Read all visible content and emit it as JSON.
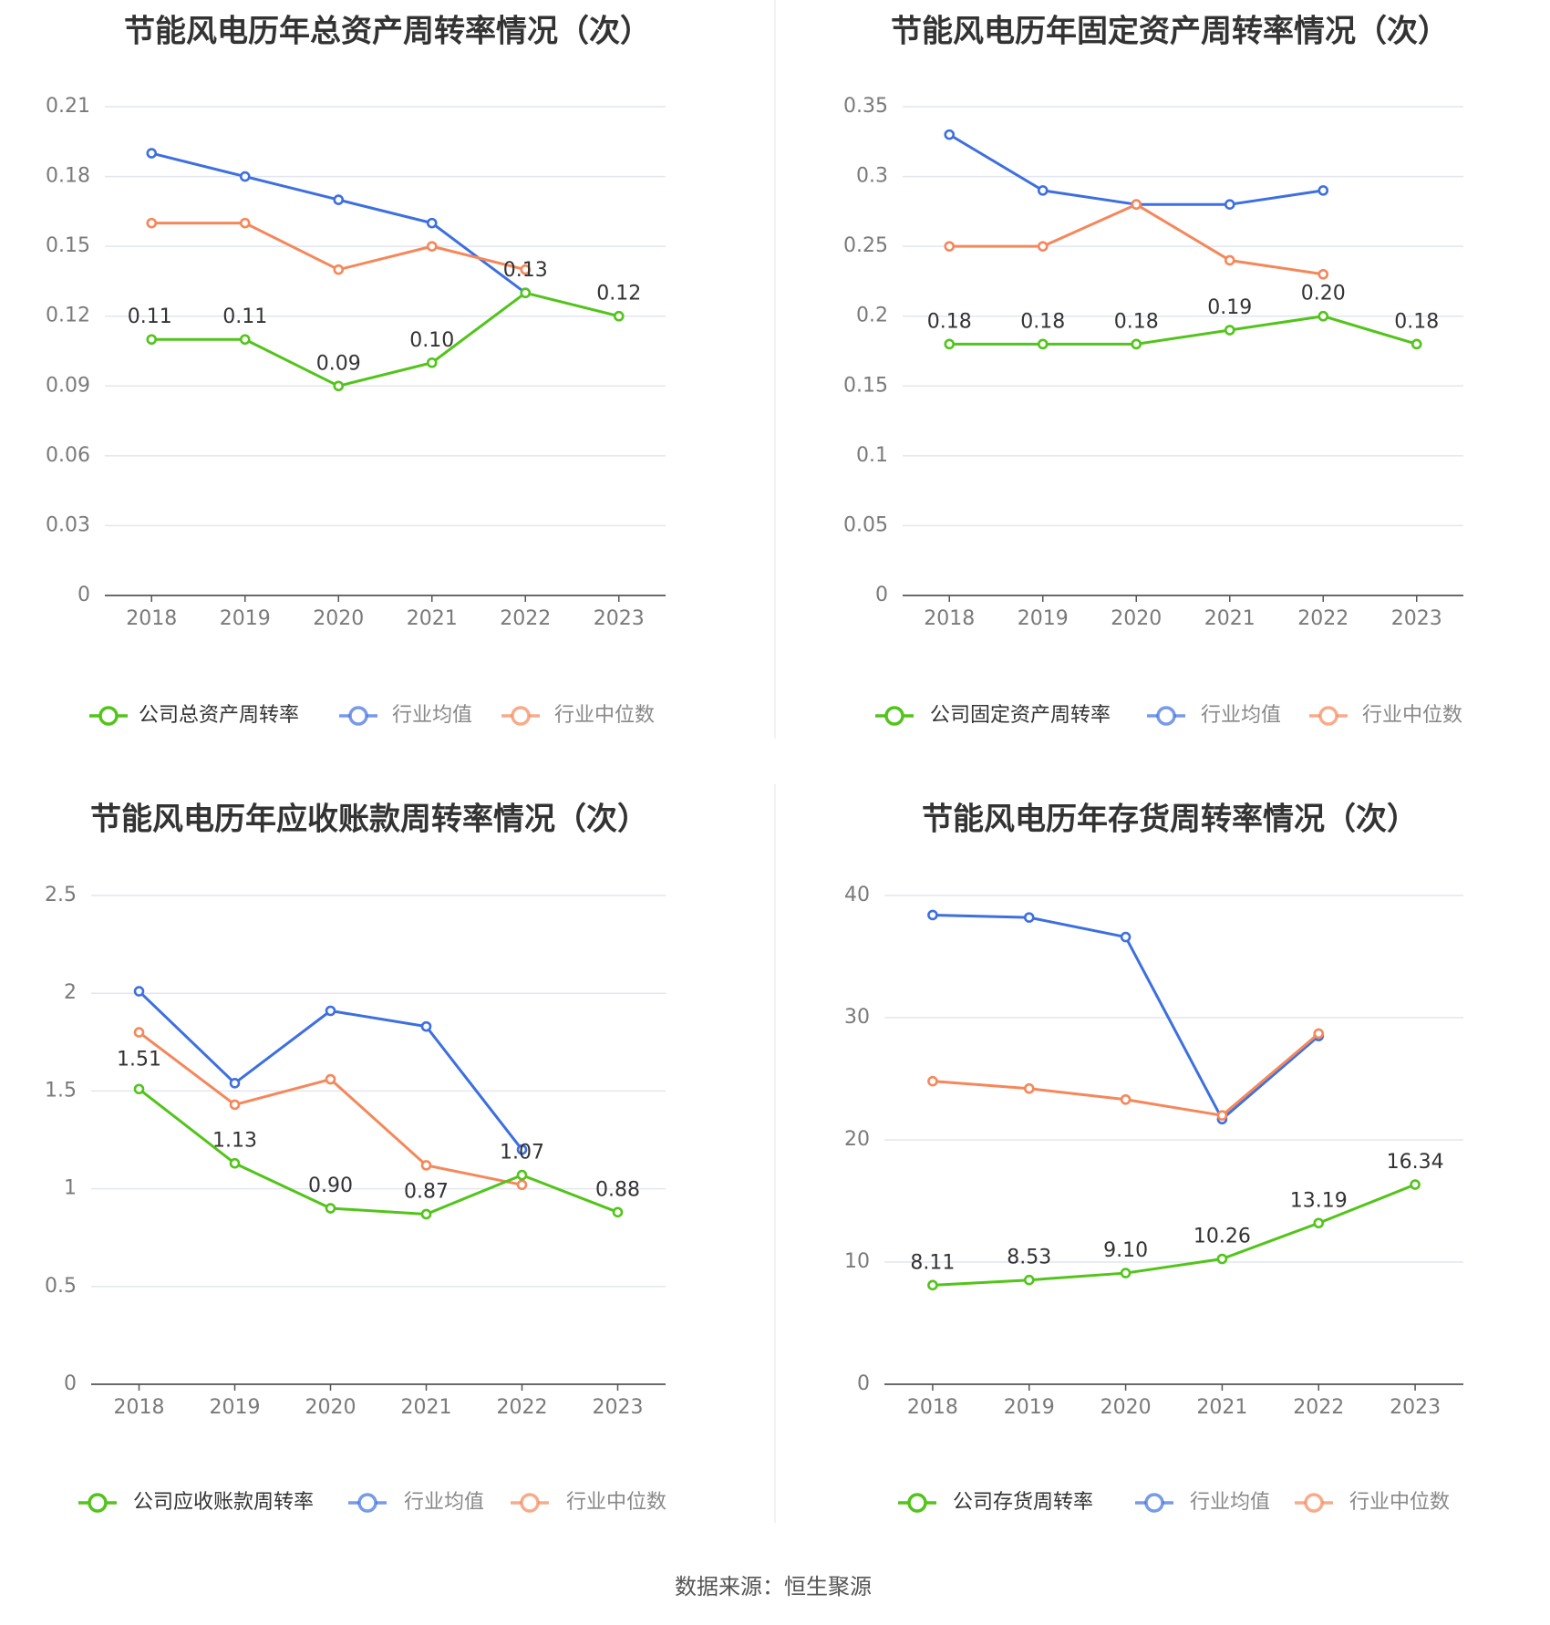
{
  "source_note": "数据来源：恒生聚源",
  "chart_data": [
    {
      "type": "line",
      "title": "节能风电历年总资产周转率情况（次）",
      "categories": [
        "2018",
        "2019",
        "2020",
        "2021",
        "2022",
        "2023"
      ],
      "ylim": [
        0,
        0.21
      ],
      "yticks": [
        "0",
        "0.03",
        "0.06",
        "0.09",
        "0.12",
        "0.15",
        "0.18",
        "0.21"
      ],
      "grid": true,
      "legend_position": "bottom",
      "series": [
        {
          "name": "公司总资产周转率",
          "color": "#52c41a",
          "values": [
            0.11,
            0.11,
            0.09,
            0.1,
            0.13,
            0.12
          ],
          "labels": [
            "0.11",
            "0.11",
            "0.09",
            "0.10",
            "0.13",
            "0.12"
          ]
        },
        {
          "name": "行业均值",
          "color": "#3d6fe0",
          "values": [
            0.19,
            0.18,
            0.17,
            0.16,
            0.13,
            null
          ]
        },
        {
          "name": "行业中位数",
          "color": "#f5875a",
          "values": [
            0.16,
            0.16,
            0.14,
            0.15,
            0.14,
            null
          ]
        }
      ]
    },
    {
      "type": "line",
      "title": "节能风电历年固定资产周转率情况（次）",
      "categories": [
        "2018",
        "2019",
        "2020",
        "2021",
        "2022",
        "2023"
      ],
      "ylim": [
        0,
        0.35
      ],
      "yticks": [
        "0",
        "0.05",
        "0.1",
        "0.15",
        "0.2",
        "0.25",
        "0.3",
        "0.35"
      ],
      "grid": true,
      "legend_position": "bottom",
      "series": [
        {
          "name": "公司固定资产周转率",
          "color": "#52c41a",
          "values": [
            0.18,
            0.18,
            0.18,
            0.19,
            0.2,
            0.18
          ],
          "labels": [
            "0.18",
            "0.18",
            "0.18",
            "0.19",
            "0.20",
            "0.18"
          ]
        },
        {
          "name": "行业均值",
          "color": "#3d6fe0",
          "values": [
            0.33,
            0.29,
            0.28,
            0.28,
            0.29,
            null
          ]
        },
        {
          "name": "行业中位数",
          "color": "#f5875a",
          "values": [
            0.25,
            0.25,
            0.28,
            0.24,
            0.23,
            null
          ]
        }
      ]
    },
    {
      "type": "line",
      "title": "节能风电历年应收账款周转率情况（次）",
      "categories": [
        "2018",
        "2019",
        "2020",
        "2021",
        "2022",
        "2023"
      ],
      "ylim": [
        0,
        2.5
      ],
      "yticks": [
        "0",
        "0.5",
        "1",
        "1.5",
        "2",
        "2.5"
      ],
      "grid": true,
      "legend_position": "bottom",
      "series": [
        {
          "name": "公司应收账款周转率",
          "color": "#52c41a",
          "values": [
            1.51,
            1.13,
            0.9,
            0.87,
            1.07,
            0.88
          ],
          "labels": [
            "1.51",
            "1.13",
            "0.90",
            "0.87",
            "1.07",
            "0.88"
          ]
        },
        {
          "name": "行业均值",
          "color": "#3d6fe0",
          "values": [
            2.01,
            1.54,
            1.91,
            1.83,
            1.2,
            null
          ]
        },
        {
          "name": "行业中位数",
          "color": "#f5875a",
          "values": [
            1.8,
            1.43,
            1.56,
            1.12,
            1.02,
            null
          ]
        }
      ]
    },
    {
      "type": "line",
      "title": "节能风电历年存货周转率情况（次）",
      "categories": [
        "2018",
        "2019",
        "2020",
        "2021",
        "2022",
        "2023"
      ],
      "ylim": [
        0,
        40
      ],
      "yticks": [
        "0",
        "10",
        "20",
        "30",
        "40"
      ],
      "grid": true,
      "legend_position": "bottom",
      "series": [
        {
          "name": "公司存货周转率",
          "color": "#52c41a",
          "values": [
            8.11,
            8.53,
            9.1,
            10.26,
            13.19,
            16.34
          ],
          "labels": [
            "8.11",
            "8.53",
            "9.10",
            "10.26",
            "13.19",
            "16.34"
          ]
        },
        {
          "name": "行业均值",
          "color": "#3d6fe0",
          "values": [
            38.4,
            38.2,
            36.6,
            21.7,
            28.5,
            null
          ]
        },
        {
          "name": "行业中位数",
          "color": "#f5875a",
          "values": [
            24.8,
            24.2,
            23.3,
            22.0,
            28.7,
            null
          ]
        }
      ]
    }
  ]
}
